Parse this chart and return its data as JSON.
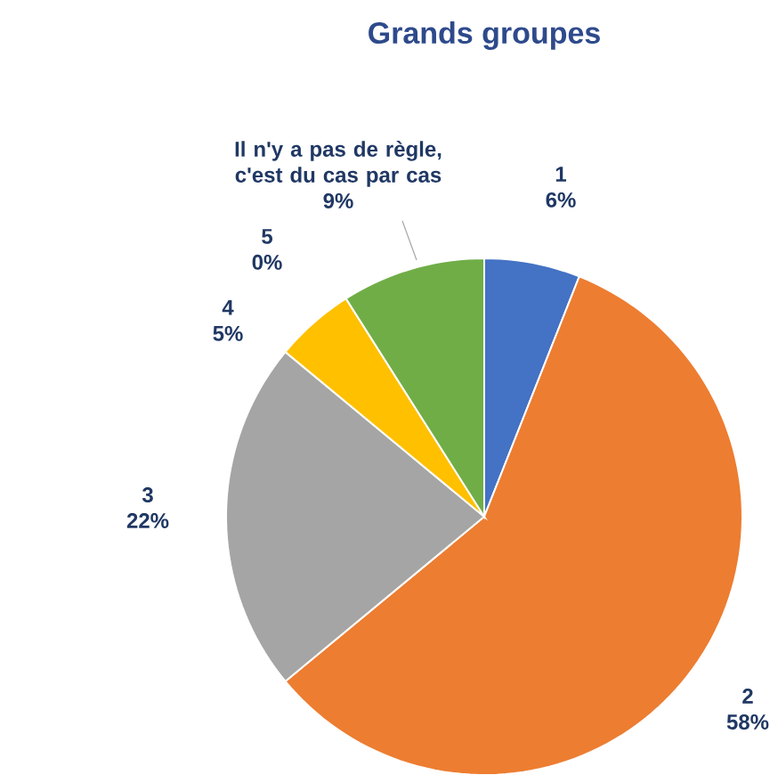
{
  "chart_data": {
    "type": "pie",
    "title": "Grands groupes",
    "categories": [
      "1",
      "2",
      "3",
      "4",
      "5",
      "Il n'y a pas de règle, c'est du cas par cas"
    ],
    "values": [
      6,
      58,
      22,
      5,
      0,
      9
    ],
    "value_labels": [
      "6%",
      "58%",
      "22%",
      "5%",
      "0%",
      "9%"
    ],
    "colors": [
      "#4472c4",
      "#ed7d31",
      "#a5a5a5",
      "#ffc000",
      "#5b9bd5",
      "#70ad47"
    ]
  }
}
